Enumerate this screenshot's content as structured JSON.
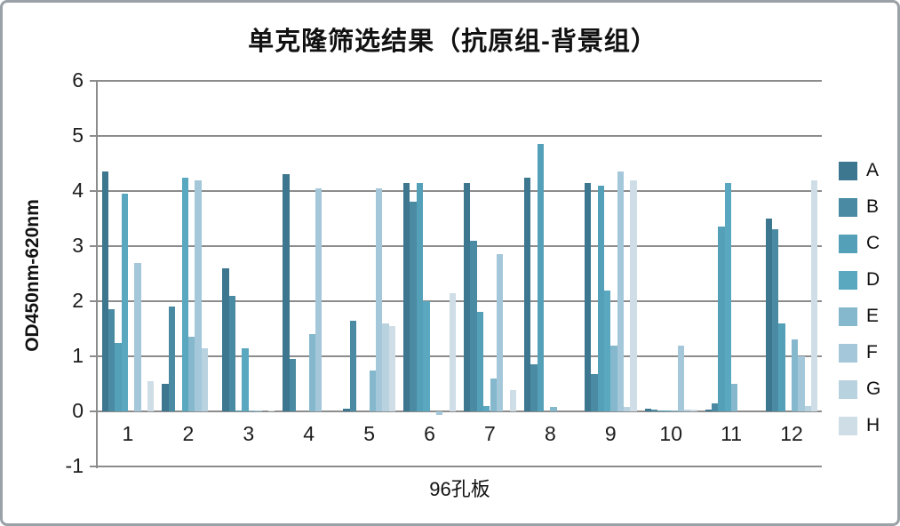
{
  "chart_data": {
    "type": "bar",
    "title": "单克隆筛选结果（抗原组-背景组）",
    "xlabel": "96孔板",
    "ylabel": "OD450nm-620nm",
    "ylim": [
      -1,
      6
    ],
    "y_ticks": [
      6,
      5,
      4,
      3,
      2,
      1,
      0,
      -1
    ],
    "grid": "horizontal",
    "legend_position": "right",
    "categories": [
      "1",
      "2",
      "3",
      "4",
      "5",
      "6",
      "7",
      "8",
      "9",
      "10",
      "11",
      "12"
    ],
    "series": [
      {
        "name": "A",
        "color": "#3C768F",
        "values": [
          4.35,
          0.5,
          2.6,
          4.3,
          0.05,
          4.15,
          4.15,
          4.25,
          4.15,
          0.05,
          0.03,
          3.5
        ]
      },
      {
        "name": "B",
        "color": "#4A8BA3",
        "values": [
          1.85,
          1.9,
          2.1,
          0.95,
          1.65,
          3.8,
          3.1,
          0.85,
          0.68,
          0.03,
          0.15,
          3.3
        ]
      },
      {
        "name": "C",
        "color": "#54A0B8",
        "values": [
          1.25,
          0,
          0.02,
          0,
          0,
          4.15,
          1.8,
          4.85,
          4.1,
          0.02,
          3.35,
          1.6
        ]
      },
      {
        "name": "D",
        "color": "#5AA7C0",
        "values": [
          3.95,
          4.25,
          1.15,
          0,
          0,
          2.0,
          0.1,
          0,
          2.2,
          0.02,
          4.15,
          0
        ]
      },
      {
        "name": "E",
        "color": "#85B8CD",
        "values": [
          0,
          1.35,
          0.02,
          1.4,
          0.75,
          0,
          0.6,
          0.08,
          1.2,
          0.02,
          0.5,
          1.3
        ]
      },
      {
        "name": "F",
        "color": "#A4C8DA",
        "values": [
          2.7,
          4.2,
          0.02,
          4.05,
          4.05,
          -0.07,
          2.85,
          0,
          4.35,
          1.2,
          0,
          1.0
        ]
      },
      {
        "name": "G",
        "color": "#B9D2DF",
        "values": [
          0,
          1.15,
          0,
          0,
          1.6,
          0,
          0,
          0,
          0.08,
          0.04,
          0,
          0.1
        ]
      },
      {
        "name": "H",
        "color": "#CFDEE6",
        "values": [
          0.55,
          0,
          0.02,
          0,
          1.55,
          2.15,
          0.38,
          0,
          4.2,
          0.04,
          0,
          4.2
        ]
      }
    ],
    "gridline_color": "#8c8c8c"
  }
}
